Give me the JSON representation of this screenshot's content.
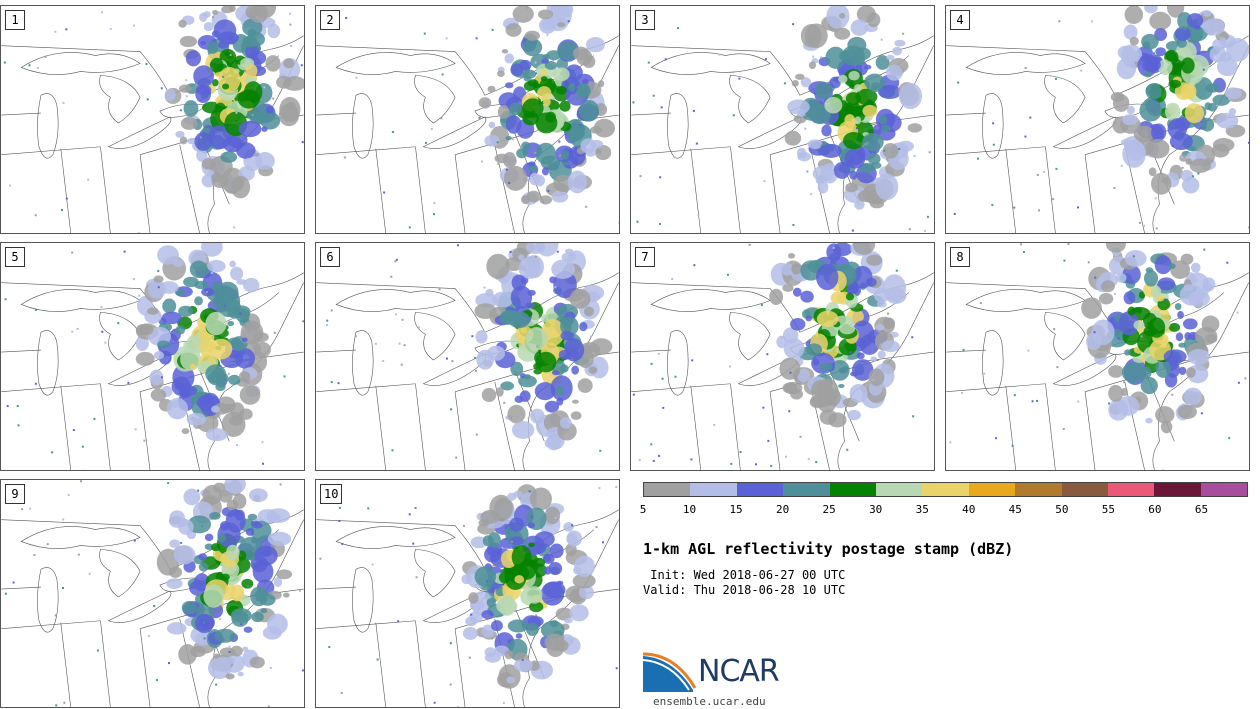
{
  "panels": [
    {
      "label": "1",
      "seed": 11
    },
    {
      "label": "2",
      "seed": 23
    },
    {
      "label": "3",
      "seed": 37
    },
    {
      "label": "4",
      "seed": 41
    },
    {
      "label": "5",
      "seed": 53
    },
    {
      "label": "6",
      "seed": 67
    },
    {
      "label": "7",
      "seed": 71
    },
    {
      "label": "8",
      "seed": 89
    },
    {
      "label": "9",
      "seed": 97
    },
    {
      "label": "10",
      "seed": 101
    }
  ],
  "colorbar": {
    "colors": [
      "#a0a0a0",
      "#b4bde8",
      "#5b61d6",
      "#4f8f99",
      "#058200",
      "#b8d8b4",
      "#ead46a",
      "#e9a91d",
      "#b07b2c",
      "#8a5a3f",
      "#ec5878",
      "#6b1838",
      "#a74e9f"
    ],
    "ticks": [
      "5",
      "10",
      "15",
      "20",
      "25",
      "30",
      "35",
      "40",
      "45",
      "50",
      "55",
      "60",
      "65"
    ]
  },
  "title": "1-km AGL reflectivity postage stamp (dBZ)",
  "init": " Init: Wed 2018-06-27 00 UTC",
  "valid": "Valid: Thu 2018-06-28 10 UTC",
  "logo": {
    "text": "NCAR",
    "url": "ensemble.ucar.edu"
  }
}
